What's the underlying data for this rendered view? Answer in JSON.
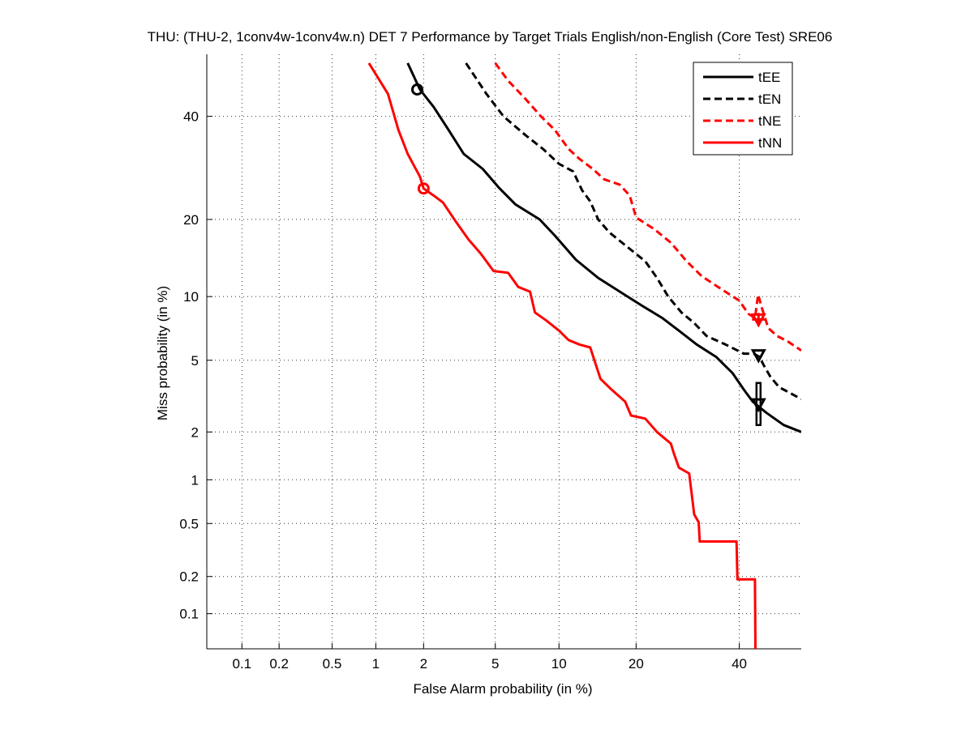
{
  "chart_data": {
    "type": "line",
    "title": "THU: (THU-2, 1conv4w-1conv4w.n) DET 7 Performance by Target Trials English/non-English (Core Test) SRE06",
    "xlabel": "False Alarm probability (in %)",
    "ylabel": "Miss probability (in %)",
    "scale": "normal-deviate (probit) on both axes",
    "xlim": [
      0.05,
      54
    ],
    "ylim": [
      0.05,
      54
    ],
    "x_ticks": [
      0.1,
      0.2,
      0.5,
      1,
      2,
      5,
      10,
      20,
      40
    ],
    "x_tick_labels": [
      "0.1",
      "0.2",
      "0.5",
      "1",
      "2",
      "5",
      "10",
      "20",
      "40"
    ],
    "y_ticks": [
      0.1,
      0.2,
      0.5,
      1,
      2,
      5,
      10,
      20,
      40
    ],
    "y_tick_labels": [
      "0.1",
      "0.2",
      "0.5",
      "1",
      "2",
      "5",
      "10",
      "20",
      "40"
    ],
    "grid": true,
    "legend_position": "top-right",
    "series": [
      {
        "name": "tEE",
        "color": "#000000",
        "dash": "solid",
        "points": [
          [
            1.6,
            52
          ],
          [
            1.9,
            46
          ],
          [
            2.3,
            42
          ],
          [
            2.8,
            37
          ],
          [
            3.4,
            32
          ],
          [
            4.3,
            29
          ],
          [
            5.2,
            25.5
          ],
          [
            6.3,
            22.5
          ],
          [
            8.2,
            20
          ],
          [
            9.6,
            17.5
          ],
          [
            11.8,
            14.2
          ],
          [
            14.5,
            12
          ],
          [
            17.5,
            10.5
          ],
          [
            21,
            9.1
          ],
          [
            24.5,
            8
          ],
          [
            27.5,
            7
          ],
          [
            31,
            6
          ],
          [
            35,
            5.2
          ],
          [
            38.5,
            4.3
          ],
          [
            41,
            3.5
          ],
          [
            43,
            3.0
          ],
          [
            46,
            2.6
          ],
          [
            50,
            2.2
          ],
          [
            54,
            2.0
          ]
        ],
        "min_dcf_point": [
          1.83,
          46
        ],
        "eer_or_actual_point": [
          44.3,
          2.9
        ]
      },
      {
        "name": "tEN",
        "color": "#000000",
        "dash": "dashed",
        "points": [
          [
            3.5,
            52
          ],
          [
            4.5,
            45
          ],
          [
            5.5,
            40
          ],
          [
            7,
            36
          ],
          [
            8.5,
            33
          ],
          [
            10,
            30
          ],
          [
            11.5,
            28.5
          ],
          [
            12.5,
            25
          ],
          [
            13.5,
            23
          ],
          [
            14.5,
            20
          ],
          [
            16,
            18
          ],
          [
            18.5,
            16
          ],
          [
            21.5,
            14
          ],
          [
            23.5,
            12
          ],
          [
            25.5,
            10
          ],
          [
            28,
            8.5
          ],
          [
            30.5,
            7.6
          ],
          [
            33,
            6.6
          ],
          [
            37,
            6
          ],
          [
            41,
            5.4
          ],
          [
            43.2,
            5.4
          ],
          [
            44.5,
            5.2
          ],
          [
            45.5,
            4.7
          ],
          [
            47,
            4.1
          ],
          [
            49,
            3.6
          ],
          [
            51,
            3.4
          ],
          [
            54,
            3.1
          ]
        ],
        "min_dcf_point": [
          44.3,
          5.3
        ],
        "eer_or_actual_point": [
          44.3,
          5.3
        ]
      },
      {
        "name": "tNE",
        "color": "#ff0000",
        "dash": "dashed",
        "points": [
          [
            5.0,
            52
          ],
          [
            5.8,
            48
          ],
          [
            7,
            44
          ],
          [
            8.3,
            40
          ],
          [
            9.6,
            37
          ],
          [
            11,
            33
          ],
          [
            12.2,
            31
          ],
          [
            13.8,
            29
          ],
          [
            15.3,
            27
          ],
          [
            17.5,
            26
          ],
          [
            19,
            24
          ],
          [
            20,
            20.3
          ],
          [
            23,
            18.5
          ],
          [
            26,
            16.5
          ],
          [
            29,
            14
          ],
          [
            32,
            12.2
          ],
          [
            36,
            10.8
          ],
          [
            40,
            9.6
          ],
          [
            42,
            8.4
          ],
          [
            43.5,
            8
          ],
          [
            44.2,
            10.2
          ],
          [
            45,
            9.0
          ],
          [
            46.5,
            7.2
          ],
          [
            48.5,
            6.6
          ],
          [
            51,
            6.2
          ],
          [
            54,
            5.6
          ]
        ],
        "min_dcf_point": [
          44.3,
          7.9
        ],
        "eer_or_actual_point": [
          44.3,
          7.9
        ]
      },
      {
        "name": "tNN",
        "color": "#ff0000",
        "dash": "solid",
        "points": [
          [
            0.9,
            52
          ],
          [
            1.2,
            45
          ],
          [
            1.4,
            37
          ],
          [
            1.6,
            32
          ],
          [
            1.9,
            27.5
          ],
          [
            2.0,
            25.3
          ],
          [
            2.3,
            24
          ],
          [
            2.6,
            22.8
          ],
          [
            3.1,
            19.5
          ],
          [
            3.6,
            17
          ],
          [
            4.2,
            15
          ],
          [
            4.9,
            12.8
          ],
          [
            5.8,
            12.6
          ],
          [
            6.5,
            11
          ],
          [
            7.4,
            10.5
          ],
          [
            7.8,
            8.5
          ],
          [
            8.8,
            7.8
          ],
          [
            10.0,
            7.0
          ],
          [
            11.0,
            6.3
          ],
          [
            12.2,
            6.0
          ],
          [
            13.5,
            5.8
          ],
          [
            14.8,
            4.0
          ],
          [
            16.3,
            3.5
          ],
          [
            18.3,
            3.0
          ],
          [
            19.2,
            2.5
          ],
          [
            21.5,
            2.4
          ],
          [
            23.5,
            2.0
          ],
          [
            26,
            1.7
          ],
          [
            26.5,
            1.5
          ],
          [
            27.5,
            1.2
          ],
          [
            29.5,
            1.1
          ],
          [
            30.5,
            0.58
          ],
          [
            31.4,
            0.51
          ],
          [
            31.6,
            0.37
          ],
          [
            39.4,
            0.37
          ],
          [
            39.6,
            0.19
          ],
          [
            43.5,
            0.19
          ],
          [
            43.6,
            0.05
          ]
        ],
        "min_dcf_point": [
          2.0,
          25.3
        ],
        "eer_or_actual_point": null
      }
    ],
    "extra_marks": [
      {
        "series": "tEE",
        "type": "vertical-box",
        "x": 44.3,
        "y_range": [
          2.2,
          3.8
        ]
      }
    ]
  }
}
